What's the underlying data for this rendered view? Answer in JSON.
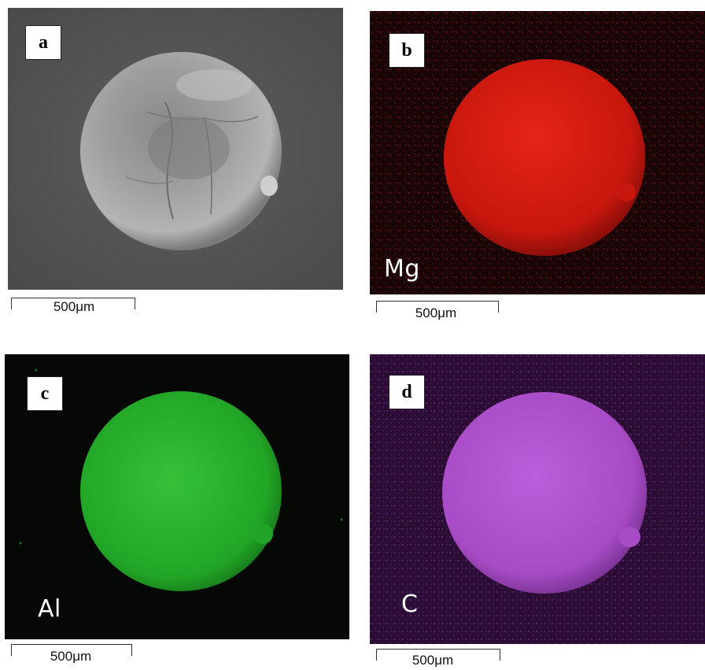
{
  "panels": [
    {
      "label": "a",
      "element": ""
    },
    {
      "label": "b",
      "element": "Mg"
    },
    {
      "label": "c",
      "element": "Al"
    },
    {
      "label": "d",
      "element": "C"
    }
  ],
  "scale_bar": "500μm",
  "colors": {
    "sem_background": "#555555",
    "sem_particle": "#a8a8a8",
    "mg_map": "#e01a12",
    "al_map": "#28b22a",
    "c_map": "#b04fd0",
    "map_background": "#0a0606"
  }
}
